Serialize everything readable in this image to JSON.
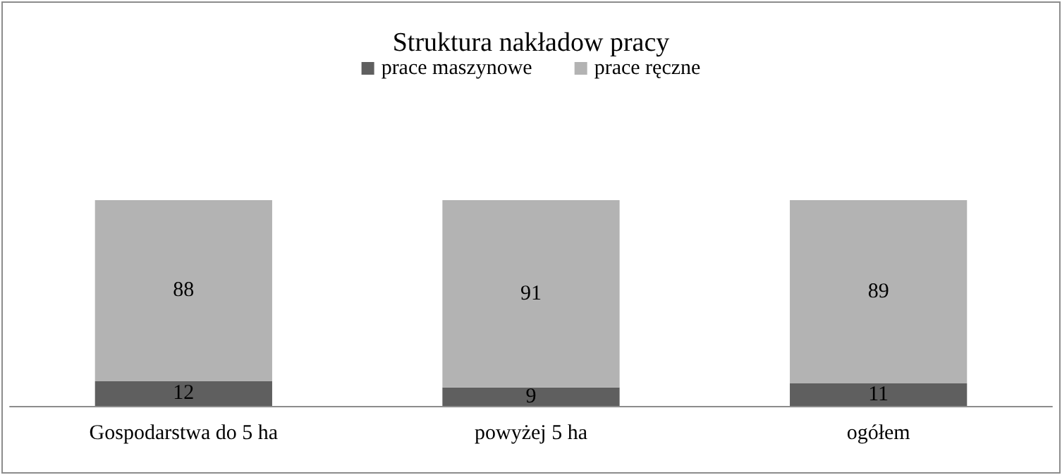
{
  "chart_data": {
    "type": "bar",
    "title": "Struktura nakładow pracy",
    "stacked": true,
    "data_labels": true,
    "legend": "top",
    "categories": [
      "Gospodarstwa do 5 ha",
      "powyżej 5 ha",
      "ogółem"
    ],
    "series": [
      {
        "name": "prace maszynowe",
        "color": "#5f5f5f",
        "values": [
          12,
          9,
          11
        ]
      },
      {
        "name": "prace ręczne",
        "color": "#b3b3b3",
        "values": [
          88,
          91,
          89
        ]
      }
    ]
  }
}
